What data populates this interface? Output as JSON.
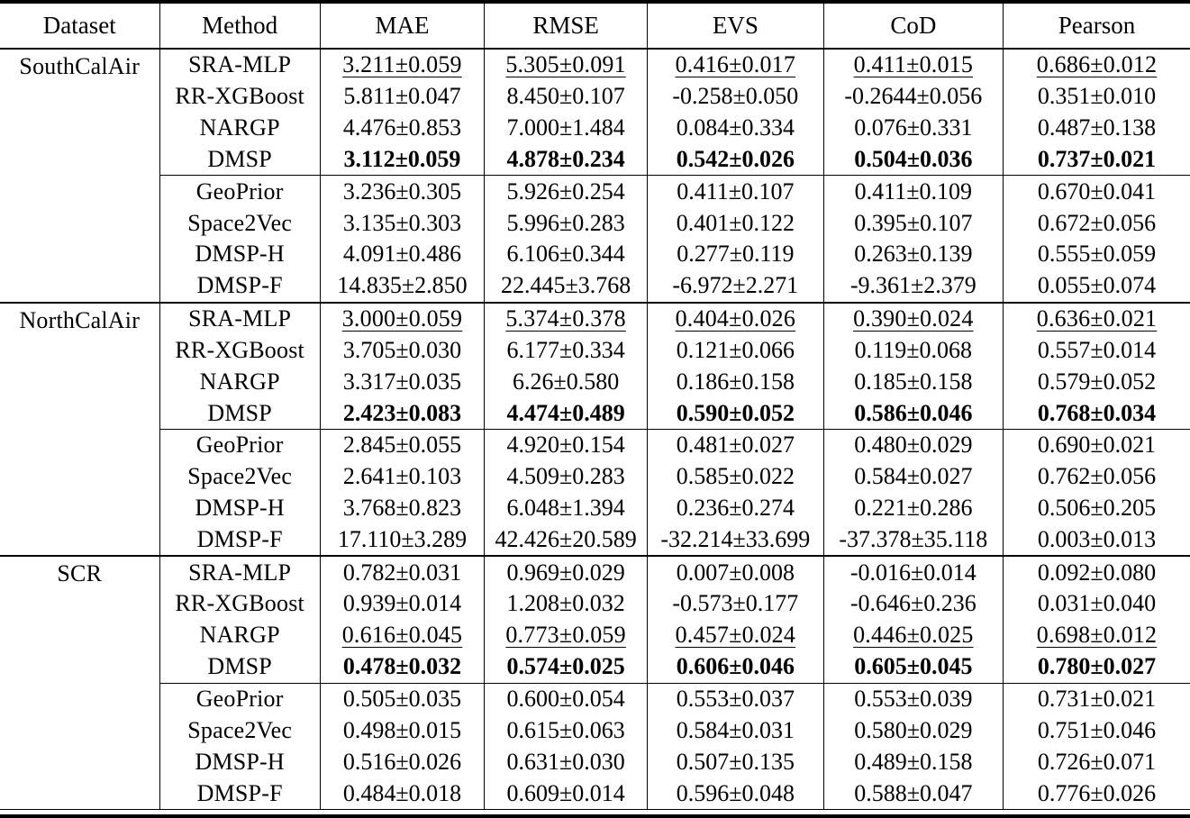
{
  "table": {
    "columns": [
      "Dataset",
      "Method",
      "MAE",
      "RMSE",
      "EVS",
      "CoD",
      "Pearson"
    ],
    "groups": [
      {
        "dataset": "SouthCalAir",
        "rows": [
          {
            "method": "SRA-MLP",
            "style": "underline",
            "values": [
              "3.211±0.059",
              "5.305±0.091",
              "0.416±0.017",
              "0.411±0.015",
              "0.686±0.012"
            ]
          },
          {
            "method": "RR-XGBoost",
            "style": "normal",
            "values": [
              "5.811±0.047",
              "8.450±0.107",
              "-0.258±0.050",
              "-0.2644±0.056",
              "0.351±0.010"
            ]
          },
          {
            "method": "NARGP",
            "style": "normal",
            "values": [
              "4.476±0.853",
              "7.000±1.484",
              "0.084±0.334",
              "0.076±0.331",
              "0.487±0.138"
            ]
          },
          {
            "method": "DMSP",
            "style": "bold",
            "separator_after": true,
            "values": [
              "3.112±0.059",
              "4.878±0.234",
              "0.542±0.026",
              "0.504±0.036",
              "0.737±0.021"
            ]
          },
          {
            "method": "GeoPrior",
            "style": "normal",
            "values": [
              "3.236±0.305",
              "5.926±0.254",
              "0.411±0.107",
              "0.411±0.109",
              "0.670±0.041"
            ]
          },
          {
            "method": "Space2Vec",
            "style": "normal",
            "values": [
              "3.135±0.303",
              "5.996±0.283",
              "0.401±0.122",
              "0.395±0.107",
              "0.672±0.056"
            ]
          },
          {
            "method": "DMSP-H",
            "style": "normal",
            "values": [
              "4.091±0.486",
              "6.106±0.344",
              "0.277±0.119",
              "0.263±0.139",
              "0.555±0.059"
            ]
          },
          {
            "method": "DMSP-F",
            "style": "normal",
            "values": [
              "14.835±2.850",
              "22.445±3.768",
              "-6.972±2.271",
              "-9.361±2.379",
              "0.055±0.074"
            ]
          }
        ]
      },
      {
        "dataset": "NorthCalAir",
        "rows": [
          {
            "method": "SRA-MLP",
            "style": "underline",
            "values": [
              "3.000±0.059",
              "5.374±0.378",
              "0.404±0.026",
              "0.390±0.024",
              "0.636±0.021"
            ]
          },
          {
            "method": "RR-XGBoost",
            "style": "normal",
            "values": [
              "3.705±0.030",
              "6.177±0.334",
              "0.121±0.066",
              "0.119±0.068",
              "0.557±0.014"
            ]
          },
          {
            "method": "NARGP",
            "style": "normal",
            "values": [
              "3.317±0.035",
              "6.26±0.580",
              "0.186±0.158",
              "0.185±0.158",
              "0.579±0.052"
            ]
          },
          {
            "method": "DMSP",
            "style": "bold",
            "separator_after": true,
            "values": [
              "2.423±0.083",
              "4.474±0.489",
              "0.590±0.052",
              "0.586±0.046",
              "0.768±0.034"
            ]
          },
          {
            "method": "GeoPrior",
            "style": "normal",
            "values": [
              "2.845±0.055",
              "4.920±0.154",
              "0.481±0.027",
              "0.480±0.029",
              "0.690±0.021"
            ]
          },
          {
            "method": "Space2Vec",
            "style": "normal",
            "values": [
              "2.641±0.103",
              "4.509±0.283",
              "0.585±0.022",
              "0.584±0.027",
              "0.762±0.056"
            ]
          },
          {
            "method": "DMSP-H",
            "style": "normal",
            "values": [
              "3.768±0.823",
              "6.048±1.394",
              "0.236±0.274",
              "0.221±0.286",
              "0.506±0.205"
            ]
          },
          {
            "method": "DMSP-F",
            "style": "normal",
            "values": [
              "17.110±3.289",
              "42.426±20.589",
              "-32.214±33.699",
              "-37.378±35.118",
              "0.003±0.013"
            ]
          }
        ]
      },
      {
        "dataset": "SCR",
        "rows": [
          {
            "method": "SRA-MLP",
            "style": "normal",
            "values": [
              "0.782±0.031",
              "0.969±0.029",
              "0.007±0.008",
              "-0.016±0.014",
              "0.092±0.080"
            ]
          },
          {
            "method": "RR-XGBoost",
            "style": "normal",
            "values": [
              "0.939±0.014",
              "1.208±0.032",
              "-0.573±0.177",
              "-0.646±0.236",
              "0.031±0.040"
            ]
          },
          {
            "method": "NARGP",
            "style": "underline",
            "values": [
              "0.616±0.045",
              "0.773±0.059",
              "0.457±0.024",
              "0.446±0.025",
              "0.698±0.012"
            ]
          },
          {
            "method": "DMSP",
            "style": "bold",
            "separator_after": true,
            "values": [
              "0.478±0.032",
              "0.574±0.025",
              "0.606±0.046",
              "0.605±0.045",
              "0.780±0.027"
            ]
          },
          {
            "method": "GeoPrior",
            "style": "normal",
            "values": [
              "0.505±0.035",
              "0.600±0.054",
              "0.553±0.037",
              "0.553±0.039",
              "0.731±0.021"
            ]
          },
          {
            "method": "Space2Vec",
            "style": "normal",
            "values": [
              "0.498±0.015",
              "0.615±0.063",
              "0.584±0.031",
              "0.580±0.029",
              "0.751±0.046"
            ]
          },
          {
            "method": "DMSP-H",
            "style": "normal",
            "values": [
              "0.516±0.026",
              "0.631±0.030",
              "0.507±0.135",
              "0.489±0.158",
              "0.726±0.071"
            ]
          },
          {
            "method": "DMSP-F",
            "style": "normal",
            "values": [
              "0.484±0.018",
              "0.609±0.014",
              "0.596±0.048",
              "0.588±0.047",
              "0.776±0.026"
            ]
          }
        ]
      }
    ]
  }
}
